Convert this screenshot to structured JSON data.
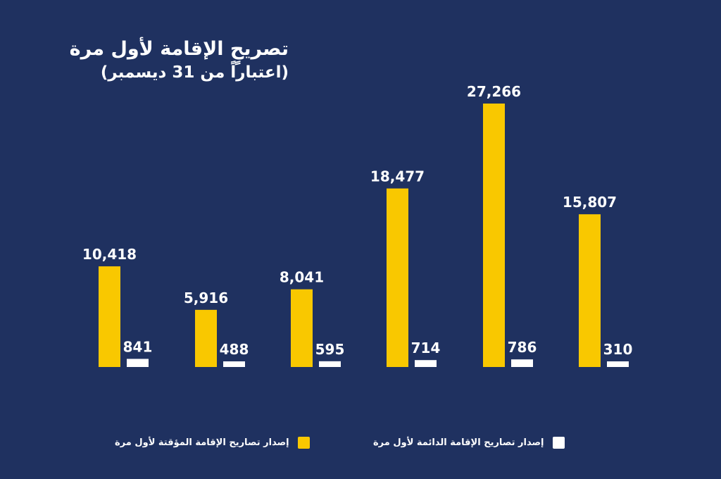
{
  "title": "تصريحٍ الإقامة لأول مرة",
  "subtitle": "(اعتباراً من 31 ديسمبر)",
  "colors": {
    "background": "#1f3160",
    "temporary": "#f9c800",
    "permanent": "#ffffff"
  },
  "chart_data": {
    "type": "bar",
    "title": "تصريحٍ الإقامة لأول مرة",
    "subtitle": "(اعتباراً من 31 ديسمبر)",
    "categories": [
      "",
      "",
      "",
      "",
      "",
      ""
    ],
    "series": [
      {
        "name": "إصدار تصاريح الإقامة المؤقتة لأول مرة",
        "values": [
          10418,
          5916,
          8041,
          18477,
          27266,
          15807
        ],
        "labels": [
          "10,418",
          "5,916",
          "8,041",
          "18,477",
          "27,266",
          "15,807"
        ],
        "color": "#f9c800"
      },
      {
        "name": "إصدار تصاريح الإقامة الدائمة لأول مرة",
        "values": [
          841,
          488,
          595,
          714,
          786,
          310
        ],
        "labels": [
          "841",
          "488",
          "595",
          "714",
          "786",
          "310"
        ],
        "color": "#ffffff"
      }
    ],
    "ylim": [
      0,
      27266
    ],
    "grid": false,
    "legend_position": "bottom"
  }
}
